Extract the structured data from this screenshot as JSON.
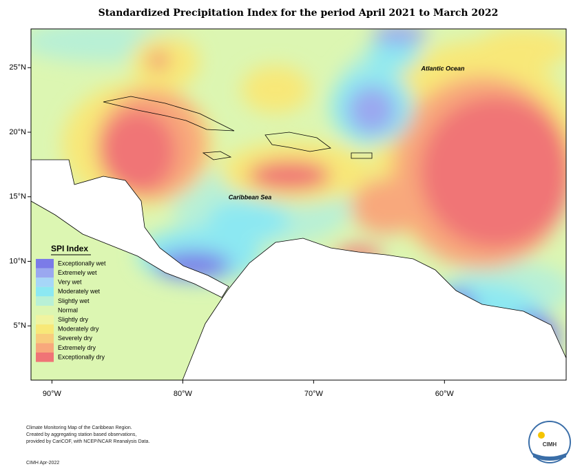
{
  "title": "Standardized Precipitation Index for the period April 2021 to March 2022",
  "map": {
    "xlim": [
      -91.6,
      -50.7
    ],
    "ylim": [
      0.8,
      28.0
    ],
    "x_ticks": [
      {
        "value": -90,
        "label": "90°W"
      },
      {
        "value": -80,
        "label": "80°W"
      },
      {
        "value": -70,
        "label": "70°W"
      },
      {
        "value": -60,
        "label": "60°W"
      }
    ],
    "y_ticks": [
      {
        "value": 25,
        "label": "25°N"
      },
      {
        "value": 20,
        "label": "20°N"
      },
      {
        "value": 15,
        "label": "15°N"
      },
      {
        "value": 10,
        "label": "10°N"
      },
      {
        "value": 5,
        "label": "5°N"
      }
    ],
    "labels": [
      "Atlantic Ocean",
      "Caribbean Sea"
    ]
  },
  "legend": {
    "title": "SPI Index",
    "items": [
      {
        "label": "Exceptionally wet",
        "color": "#7b7be8"
      },
      {
        "label": "Extremely wet",
        "color": "#9aa8f0"
      },
      {
        "label": "Very wet",
        "color": "#a6d6f8"
      },
      {
        "label": "Moderately wet",
        "color": "#8ce8f2"
      },
      {
        "label": "Slightly wet",
        "color": "#b8f0d6"
      },
      {
        "label": "Normal",
        "color": "#dcf6b2"
      },
      {
        "label": "Slightly dry",
        "color": "#f0f4a0"
      },
      {
        "label": "Moderately dry",
        "color": "#f8e878"
      },
      {
        "label": "Severely dry",
        "color": "#f8cc7c"
      },
      {
        "label": "Extremely dry",
        "color": "#f8a87c"
      },
      {
        "label": "Exceptionally dry",
        "color": "#f07476"
      }
    ]
  },
  "footer": {
    "lines": [
      "Climate Monitoring Map of the Caribbean Region.",
      "Created by aggregating station based observations,",
      "provided by CariCOF, with NCEP/NCAR Reanalysis Data."
    ],
    "credit": "CIMH Apr-2022"
  },
  "logo": {
    "text": "CIMH"
  }
}
